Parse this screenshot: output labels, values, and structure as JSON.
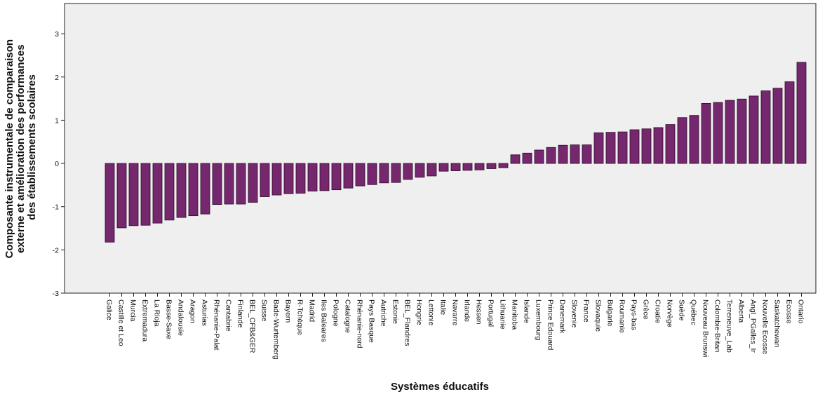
{
  "chart_data": {
    "type": "bar",
    "title": "",
    "xlabel": "Systèmes éducatifs",
    "ylabel_lines": [
      "Composante instrumentale de comparaison",
      "externe et amélioration des performances",
      "des établissements scolaires"
    ],
    "ylim": [
      -3,
      3.7
    ],
    "yticks": [
      -3,
      -2,
      -1,
      0,
      1,
      2,
      3
    ],
    "grid": false,
    "colors": {
      "bar": "#76286e",
      "bar_stroke": "#2b0a28",
      "plot_bg": "#efefef"
    },
    "categories": [
      "Galice",
      "Castille et Leo",
      "Murcia",
      "Extremadura",
      "La Rioja",
      "Basse-Saxe",
      "Andalousie",
      "Aragon",
      "Asturias",
      "Rhénanie-Palat",
      "Cantabrie",
      "Finlande",
      "BEL_CFB&GER",
      "Suisse",
      "Bade-Wurtemberg",
      "Bayern",
      "R-Tchèque",
      "Madrid",
      "Iles Baleares",
      "Pologne",
      "Catalogne",
      "Rhénanie-nord",
      "Pays Basque",
      "Autriche",
      "Estonie",
      "BEL_Flandres",
      "Hongrie",
      "Lettonie",
      "Italie",
      "Navarre",
      "Irlande",
      "Hessen",
      "Portugal",
      "Lithuanie",
      "Manitoba",
      "Islande",
      "Luxembourg",
      "Prince Edouard",
      "Danemark",
      "Slovenie",
      "France",
      "Slovaquie",
      "Bulgarie",
      "Roumanie",
      "Pays-bas",
      "Grèce",
      "Croatie",
      "Norvège",
      "Suède",
      "Québec",
      "Nouveau Brunswi",
      "Colombie-Britan",
      "Terreneuve_Lab",
      "Alberta",
      "Angl_PGalles_Ir",
      "Nouvelle Ecosse",
      "Saskatchewan",
      "Ecosse",
      "Ontario"
    ],
    "values": [
      -1.82,
      -1.49,
      -1.44,
      -1.43,
      -1.38,
      -1.31,
      -1.25,
      -1.21,
      -1.17,
      -0.95,
      -0.94,
      -0.94,
      -0.9,
      -0.77,
      -0.73,
      -0.7,
      -0.69,
      -0.64,
      -0.63,
      -0.61,
      -0.57,
      -0.52,
      -0.49,
      -0.45,
      -0.44,
      -0.37,
      -0.32,
      -0.29,
      -0.18,
      -0.17,
      -0.16,
      -0.15,
      -0.12,
      -0.1,
      0.2,
      0.24,
      0.31,
      0.37,
      0.42,
      0.43,
      0.43,
      0.71,
      0.72,
      0.73,
      0.78,
      0.8,
      0.83,
      0.9,
      1.06,
      1.11,
      1.39,
      1.41,
      1.46,
      1.49,
      1.56,
      1.68,
      1.74,
      1.89,
      2.34
    ]
  }
}
